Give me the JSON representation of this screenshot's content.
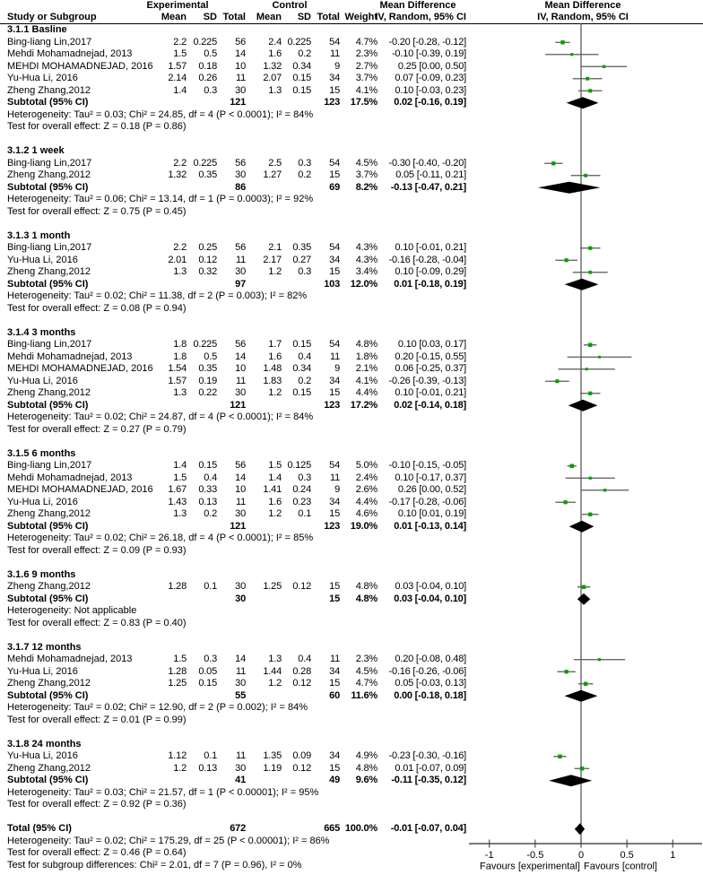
{
  "headers": {
    "experimental": "Experimental",
    "control": "Control",
    "mean_difference": "Mean Difference",
    "study": "Study or Subgroup",
    "mean": "Mean",
    "sd": "SD",
    "total": "Total",
    "weight": "Weight",
    "ci_model": "IV, Random, 95% CI"
  },
  "colors": {
    "marker_green": "#00a000",
    "ci_line_gray": "#595959",
    "diamond_black": "#000000",
    "axis_gray": "#4d4d4d",
    "text": "#000000"
  },
  "chart_data": {
    "type": "forest_plot",
    "effect_measure": "Mean Difference",
    "model": "IV, Random, 95% CI",
    "axis": {
      "min": -1,
      "max": 1,
      "ticks": [
        {
          "value": -1,
          "label": "-1"
        },
        {
          "value": -0.5,
          "label": "-0.5"
        },
        {
          "value": 0,
          "label": "0"
        },
        {
          "value": 0.5,
          "label": "0.5"
        },
        {
          "value": 1,
          "label": "1"
        }
      ],
      "left_label": "Favours [experimental]",
      "right_label": "Favours [control]"
    },
    "sections": [
      {
        "label": "3.1.1 Basline",
        "studies": [
          {
            "name": "Bing-liang Lin,2017",
            "exp_mean": "2.2",
            "exp_sd": "0.225",
            "exp_total": "56",
            "ctl_mean": "2.4",
            "ctl_sd": "0.225",
            "ctl_total": "54",
            "weight": "4.7%",
            "ci": "-0.20 [-0.28, -0.12]"
          },
          {
            "name": "Mehdi Mohamadnejad, 2013",
            "exp_mean": "1.5",
            "exp_sd": "0.5",
            "exp_total": "14",
            "ctl_mean": "1.6",
            "ctl_sd": "0.2",
            "ctl_total": "11",
            "weight": "2.3%",
            "ci": "-0.10 [-0.39, 0.19]"
          },
          {
            "name": "MEHDI MOHAMADNEJAD, 2016",
            "exp_mean": "1.57",
            "exp_sd": "0.18",
            "exp_total": "10",
            "ctl_mean": "1.32",
            "ctl_sd": "0.34",
            "ctl_total": "9",
            "weight": "2.7%",
            "ci": "0.25 [0.00, 0.50]"
          },
          {
            "name": "Yu-Hua Li, 2016",
            "exp_mean": "2.14",
            "exp_sd": "0.26",
            "exp_total": "11",
            "ctl_mean": "2.07",
            "ctl_sd": "0.15",
            "ctl_total": "34",
            "weight": "3.7%",
            "ci": "0.07 [-0.09, 0.23]"
          },
          {
            "name": "Zheng Zhang,2012",
            "exp_mean": "1.4",
            "exp_sd": "0.3",
            "exp_total": "30",
            "ctl_mean": "1.3",
            "ctl_sd": "0.15",
            "ctl_total": "15",
            "weight": "4.1%",
            "ci": "0.10 [-0.03, 0.23]"
          }
        ],
        "subtotal": {
          "label": "Subtotal (95% CI)",
          "exp_total": "121",
          "ctl_total": "123",
          "weight": "17.5%",
          "ci": "0.02 [-0.16, 0.19]"
        },
        "heterogeneity": "Heterogeneity: Tau² = 0.03; Chi² = 24.85, df = 4 (P < 0.0001); I² = 84%",
        "overall": "Test for overall effect: Z = 0.18 (P = 0.86)"
      },
      {
        "label": "3.1.2 1 week",
        "studies": [
          {
            "name": "Bing-liang Lin,2017",
            "exp_mean": "2.2",
            "exp_sd": "0.225",
            "exp_total": "56",
            "ctl_mean": "2.5",
            "ctl_sd": "0.3",
            "ctl_total": "54",
            "weight": "4.5%",
            "ci": "-0.30 [-0.40, -0.20]"
          },
          {
            "name": "Zheng Zhang,2012",
            "exp_mean": "1.32",
            "exp_sd": "0.35",
            "exp_total": "30",
            "ctl_mean": "1.27",
            "ctl_sd": "0.2",
            "ctl_total": "15",
            "weight": "3.7%",
            "ci": "0.05 [-0.11, 0.21]"
          }
        ],
        "subtotal": {
          "label": "Subtotal (95% CI)",
          "exp_total": "86",
          "ctl_total": "69",
          "weight": "8.2%",
          "ci": "-0.13 [-0.47, 0.21]"
        },
        "heterogeneity": "Heterogeneity: Tau² = 0.06; Chi² = 13.14, df = 1 (P = 0.0003); I² = 92%",
        "overall": "Test for overall effect: Z = 0.75 (P = 0.45)"
      },
      {
        "label": "3.1.3 1 month",
        "studies": [
          {
            "name": "Bing-liang Lin,2017",
            "exp_mean": "2.2",
            "exp_sd": "0.25",
            "exp_total": "56",
            "ctl_mean": "2.1",
            "ctl_sd": "0.35",
            "ctl_total": "54",
            "weight": "4.3%",
            "ci": "0.10 [-0.01, 0.21]"
          },
          {
            "name": "Yu-Hua Li, 2016",
            "exp_mean": "2.01",
            "exp_sd": "0.12",
            "exp_total": "11",
            "ctl_mean": "2.17",
            "ctl_sd": "0.27",
            "ctl_total": "34",
            "weight": "4.3%",
            "ci": "-0.16 [-0.28, -0.04]"
          },
          {
            "name": "Zheng Zhang,2012",
            "exp_mean": "1.3",
            "exp_sd": "0.32",
            "exp_total": "30",
            "ctl_mean": "1.2",
            "ctl_sd": "0.3",
            "ctl_total": "15",
            "weight": "3.4%",
            "ci": "0.10 [-0.09, 0.29]"
          }
        ],
        "subtotal": {
          "label": "Subtotal (95% CI)",
          "exp_total": "97",
          "ctl_total": "103",
          "weight": "12.0%",
          "ci": "0.01 [-0.18, 0.19]"
        },
        "heterogeneity": "Heterogeneity: Tau² = 0.02; Chi² = 11.38, df = 2 (P = 0.003); I² = 82%",
        "overall": "Test for overall effect: Z = 0.08 (P = 0.94)"
      },
      {
        "label": "3.1.4 3 months",
        "studies": [
          {
            "name": "Bing-liang Lin,2017",
            "exp_mean": "1.8",
            "exp_sd": "0.225",
            "exp_total": "56",
            "ctl_mean": "1.7",
            "ctl_sd": "0.15",
            "ctl_total": "54",
            "weight": "4.8%",
            "ci": "0.10 [0.03, 0.17]"
          },
          {
            "name": "Mehdi Mohamadnejad, 2013",
            "exp_mean": "1.8",
            "exp_sd": "0.5",
            "exp_total": "14",
            "ctl_mean": "1.6",
            "ctl_sd": "0.4",
            "ctl_total": "11",
            "weight": "1.8%",
            "ci": "0.20 [-0.15, 0.55]"
          },
          {
            "name": "MEHDI MOHAMADNEJAD, 2016",
            "exp_mean": "1.54",
            "exp_sd": "0.35",
            "exp_total": "10",
            "ctl_mean": "1.48",
            "ctl_sd": "0.34",
            "ctl_total": "9",
            "weight": "2.1%",
            "ci": "0.06 [-0.25, 0.37]"
          },
          {
            "name": "Yu-Hua Li, 2016",
            "exp_mean": "1.57",
            "exp_sd": "0.19",
            "exp_total": "11",
            "ctl_mean": "1.83",
            "ctl_sd": "0.2",
            "ctl_total": "34",
            "weight": "4.1%",
            "ci": "-0.26 [-0.39, -0.13]"
          },
          {
            "name": "Zheng Zhang,2012",
            "exp_mean": "1.3",
            "exp_sd": "0.22",
            "exp_total": "30",
            "ctl_mean": "1.2",
            "ctl_sd": "0.15",
            "ctl_total": "15",
            "weight": "4.4%",
            "ci": "0.10 [-0.01, 0.21]"
          }
        ],
        "subtotal": {
          "label": "Subtotal (95% CI)",
          "exp_total": "121",
          "ctl_total": "123",
          "weight": "17.2%",
          "ci": "0.02 [-0.14, 0.18]"
        },
        "heterogeneity": "Heterogeneity: Tau² = 0.02; Chi² = 24.87, df = 4 (P < 0.0001); I² = 84%",
        "overall": "Test for overall effect: Z = 0.27 (P = 0.79)"
      },
      {
        "label": "3.1.5 6 months",
        "studies": [
          {
            "name": "Bing-liang Lin,2017",
            "exp_mean": "1.4",
            "exp_sd": "0.15",
            "exp_total": "56",
            "ctl_mean": "1.5",
            "ctl_sd": "0.125",
            "ctl_total": "54",
            "weight": "5.0%",
            "ci": "-0.10 [-0.15, -0.05]"
          },
          {
            "name": "Mehdi Mohamadnejad, 2013",
            "exp_mean": "1.5",
            "exp_sd": "0.4",
            "exp_total": "14",
            "ctl_mean": "1.4",
            "ctl_sd": "0.3",
            "ctl_total": "11",
            "weight": "2.4%",
            "ci": "0.10 [-0.17, 0.37]"
          },
          {
            "name": "MEHDI MOHAMADNEJAD, 2016",
            "exp_mean": "1.67",
            "exp_sd": "0.33",
            "exp_total": "10",
            "ctl_mean": "1.41",
            "ctl_sd": "0.24",
            "ctl_total": "9",
            "weight": "2.6%",
            "ci": "0.26 [0.00, 0.52]"
          },
          {
            "name": "Yu-Hua Li, 2016",
            "exp_mean": "1.43",
            "exp_sd": "0.13",
            "exp_total": "11",
            "ctl_mean": "1.6",
            "ctl_sd": "0.23",
            "ctl_total": "34",
            "weight": "4.4%",
            "ci": "-0.17 [-0.28, -0.06]"
          },
          {
            "name": "Zheng Zhang,2012",
            "exp_mean": "1.3",
            "exp_sd": "0.2",
            "exp_total": "30",
            "ctl_mean": "1.2",
            "ctl_sd": "0.1",
            "ctl_total": "15",
            "weight": "4.6%",
            "ci": "0.10 [0.01, 0.19]"
          }
        ],
        "subtotal": {
          "label": "Subtotal (95% CI)",
          "exp_total": "121",
          "ctl_total": "123",
          "weight": "19.0%",
          "ci": "0.01 [-0.13, 0.14]"
        },
        "heterogeneity": "Heterogeneity: Tau² = 0.02; Chi² = 26.18, df = 4 (P < 0.0001); I² = 85%",
        "overall": "Test for overall effect: Z = 0.09 (P = 0.93)"
      },
      {
        "label": "3.1.6 9 months",
        "studies": [
          {
            "name": "Zheng Zhang,2012",
            "exp_mean": "1.28",
            "exp_sd": "0.1",
            "exp_total": "30",
            "ctl_mean": "1.25",
            "ctl_sd": "0.12",
            "ctl_total": "15",
            "weight": "4.8%",
            "ci": "0.03 [-0.04, 0.10]"
          }
        ],
        "subtotal": {
          "label": "Subtotal (95% CI)",
          "exp_total": "30",
          "ctl_total": "15",
          "weight": "4.8%",
          "ci": "0.03 [-0.04, 0.10]"
        },
        "heterogeneity": "Heterogeneity: Not applicable",
        "overall": "Test for overall effect: Z = 0.83 (P = 0.40)"
      },
      {
        "label": "3.1.7 12 months",
        "studies": [
          {
            "name": "Mehdi Mohamadnejad, 2013",
            "exp_mean": "1.5",
            "exp_sd": "0.3",
            "exp_total": "14",
            "ctl_mean": "1.3",
            "ctl_sd": "0.4",
            "ctl_total": "11",
            "weight": "2.3%",
            "ci": "0.20 [-0.08, 0.48]"
          },
          {
            "name": "Yu-Hua Li, 2016",
            "exp_mean": "1.28",
            "exp_sd": "0.05",
            "exp_total": "11",
            "ctl_mean": "1.44",
            "ctl_sd": "0.28",
            "ctl_total": "34",
            "weight": "4.5%",
            "ci": "-0.16 [-0.26, -0.06]"
          },
          {
            "name": "Zheng Zhang,2012",
            "exp_mean": "1.25",
            "exp_sd": "0.15",
            "exp_total": "30",
            "ctl_mean": "1.2",
            "ctl_sd": "0.12",
            "ctl_total": "15",
            "weight": "4.7%",
            "ci": "0.05 [-0.03, 0.13]"
          }
        ],
        "subtotal": {
          "label": "Subtotal (95% CI)",
          "exp_total": "55",
          "ctl_total": "60",
          "weight": "11.6%",
          "ci": "0.00 [-0.18, 0.18]"
        },
        "heterogeneity": "Heterogeneity: Tau² = 0.02; Chi² = 12.90, df = 2 (P = 0.002); I² = 84%",
        "overall": "Test for overall effect: Z = 0.01 (P = 0.99)"
      },
      {
        "label": "3.1.8 24 months",
        "studies": [
          {
            "name": "Yu-Hua Li, 2016",
            "exp_mean": "1.12",
            "exp_sd": "0.1",
            "exp_total": "11",
            "ctl_mean": "1.35",
            "ctl_sd": "0.09",
            "ctl_total": "34",
            "weight": "4.9%",
            "ci": "-0.23 [-0.30, -0.16]"
          },
          {
            "name": "Zheng Zhang,2012",
            "exp_mean": "1.2",
            "exp_sd": "0.13",
            "exp_total": "30",
            "ctl_mean": "1.19",
            "ctl_sd": "0.12",
            "ctl_total": "15",
            "weight": "4.8%",
            "ci": "0.01 [-0.07, 0.09]"
          }
        ],
        "subtotal": {
          "label": "Subtotal (95% CI)",
          "exp_total": "41",
          "ctl_total": "49",
          "weight": "9.6%",
          "ci": "-0.11 [-0.35, 0.12]"
        },
        "heterogeneity": "Heterogeneity: Tau² = 0.03; Chi² = 21.57, df = 1 (P < 0.00001); I² = 95%",
        "overall": "Test for overall effect: Z = 0.92 (P = 0.36)"
      }
    ],
    "total": {
      "label": "Total (95% CI)",
      "exp_total": "672",
      "ctl_total": "665",
      "weight": "100.0%",
      "ci": "-0.01 [-0.07, 0.04]"
    },
    "total_heterogeneity": "Heterogeneity: Tau² = 0.02; Chi² = 175.29, df = 25 (P < 0.00001); I² = 86%",
    "total_overall": "Test for overall effect: Z = 0.46 (P = 0.64)",
    "subgroup_diff": "Test for subgroup differences: Chi² = 2.01, df = 7 (P = 0.96), I² = 0%"
  }
}
